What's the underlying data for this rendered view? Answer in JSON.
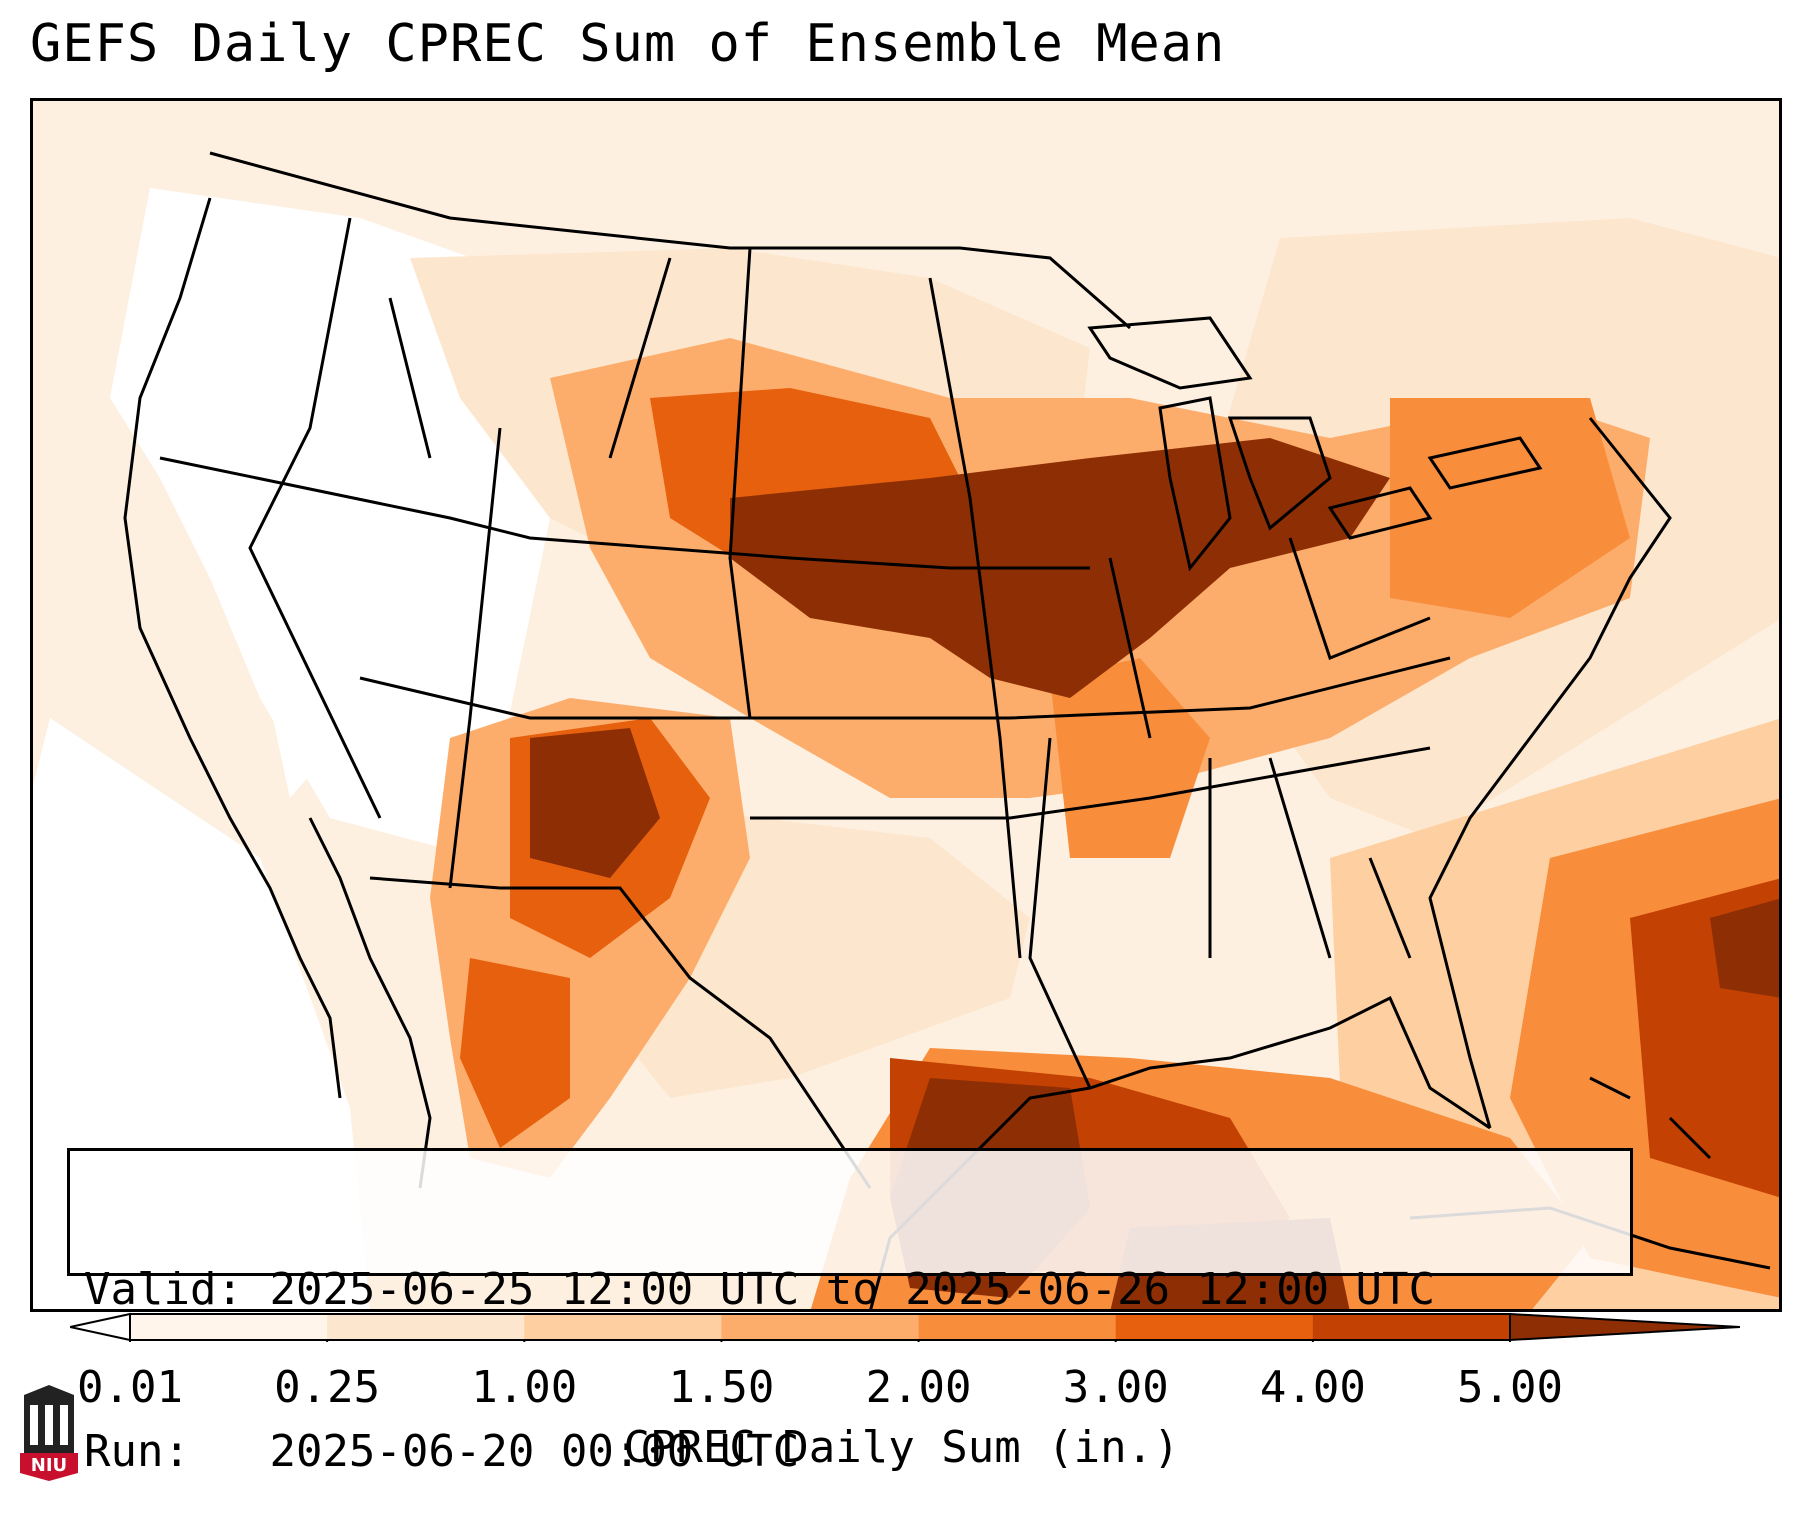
{
  "title": "GEFS Daily CPREC Sum of Ensemble Mean",
  "info": {
    "valid_label": "Valid:",
    "valid_value": "2025-06-25 12:00 UTC to 2025-06-26 12:00 UTC",
    "run_label": "Run:",
    "run_value": "2025-06-20 00:00 UTC"
  },
  "colorbar": {
    "label": "CPREC Daily Sum (in.)",
    "ticks": [
      "0.01",
      "0.25",
      "1.00",
      "1.50",
      "2.00",
      "3.00",
      "4.00",
      "5.00"
    ],
    "colors": [
      "#fff5eb",
      "#fde6ce",
      "#fdcfa1",
      "#fdad6b",
      "#f88d3c",
      "#e6600d",
      "#c34102",
      "#8e2e04"
    ],
    "under_color": "#ffffff",
    "over_color": "#7f2704"
  },
  "logo": {
    "text": "NIU",
    "color": "#c8102e"
  }
}
